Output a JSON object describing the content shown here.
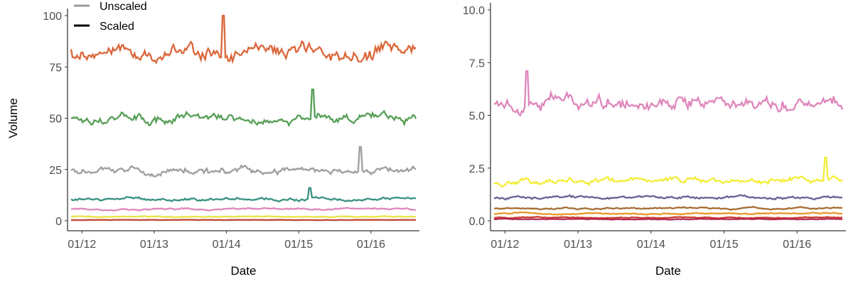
{
  "chart_data": [
    {
      "type": "line",
      "xlabel": "Date",
      "ylabel": "Volume",
      "ylim": [
        0,
        100
      ],
      "yticks": [
        "0",
        "25",
        "50",
        "75",
        "100"
      ],
      "xticks": [
        "01/12",
        "01/13",
        "01/14",
        "01/15",
        "01/16"
      ],
      "xtick_values": [
        2012,
        2013,
        2014,
        2015,
        2016
      ],
      "x_range": [
        2011.85,
        2016.62
      ],
      "legend": {
        "position": "top-left",
        "entries": [
          {
            "label": "Unscaled",
            "color": "#999999"
          },
          {
            "label": "Scaled",
            "color": "#000000"
          }
        ]
      },
      "series": [
        {
          "color": "#D95F30",
          "base": 82,
          "noise": 4.5,
          "spike": 100,
          "spike_x": 2013.95
        },
        {
          "color": "#4E9A4E",
          "base": 50,
          "noise": 2.8,
          "spike": 64,
          "spike_x": 2015.2
        },
        {
          "color": "#999999",
          "base": 24,
          "noise": 2.2,
          "spike": 36,
          "spike_x": 2015.85
        },
        {
          "color": "#2E8B7A",
          "base": 10.5,
          "noise": 0.9,
          "spike": 16,
          "spike_x": 2015.15
        },
        {
          "color": "#DD80B8",
          "base": 5.7,
          "noise": 0.5
        },
        {
          "color": "#E8E23A",
          "base": 2,
          "noise": 0.3
        },
        {
          "color": "#C0392B",
          "base": 0.4,
          "noise": 0.1
        }
      ],
      "grid": false
    },
    {
      "type": "line",
      "xlabel": "Date",
      "ylabel": "",
      "ylim": [
        0,
        10
      ],
      "yticks": [
        "0.0",
        "2.5",
        "5.0",
        "7.5",
        "10.0"
      ],
      "xticks": [
        "01/12",
        "01/13",
        "01/14",
        "01/15",
        "01/16"
      ],
      "xtick_values": [
        2012,
        2013,
        2014,
        2015,
        2016
      ],
      "x_range": [
        2011.85,
        2016.62
      ],
      "series": [
        {
          "color": "#DD80B8",
          "base": 5.7,
          "noise": 0.45,
          "spike": 7.1,
          "spike_x": 2012.3
        },
        {
          "color": "#F2EC2C",
          "base": 1.9,
          "noise": 0.18,
          "spike": 3.0,
          "spike_x": 2016.4
        },
        {
          "color": "#5E5A8C",
          "base": 1.1,
          "noise": 0.08
        },
        {
          "color": "#A0662A",
          "base": 0.6,
          "noise": 0.05
        },
        {
          "color": "#E8901E",
          "base": 0.35,
          "noise": 0.04
        },
        {
          "color": "#C9341F",
          "base": 0.15,
          "noise": 0.03
        },
        {
          "color": "#B02050",
          "base": 0.08,
          "noise": 0.02
        }
      ],
      "grid": false
    }
  ]
}
